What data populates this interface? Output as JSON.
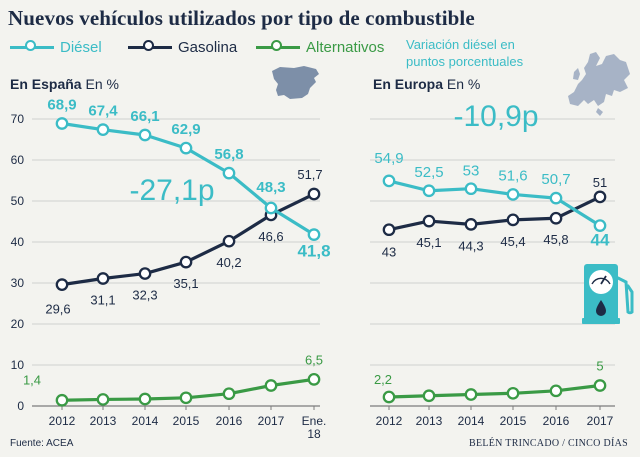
{
  "title": "Nuevos vehículos utilizados por tipo de combustible",
  "legend": [
    {
      "label": "Diésel",
      "color": "#3bbcc6"
    },
    {
      "label": "Gasolina",
      "color": "#1d2b45"
    },
    {
      "label": "Alternativos",
      "color": "#3a9a45"
    }
  ],
  "note": "Variación diésel en puntos porcentuales",
  "source": "Fuente: ACEA",
  "credit": "BELÉN TRINCADO / CINCO DÍAS",
  "chart_data": [
    {
      "type": "line",
      "title": "En España",
      "unit": "En %",
      "categories": [
        "2012",
        "2013",
        "2014",
        "2015",
        "2016",
        "2017",
        "Ene. 18"
      ],
      "ylim": [
        0,
        70
      ],
      "yticks": [
        0,
        10,
        20,
        30,
        40,
        50,
        60,
        70
      ],
      "gridlines": true,
      "annotation": "-27,1p",
      "series": [
        {
          "name": "Diésel",
          "color": "#3bbcc6",
          "values": [
            68.9,
            67.4,
            66.1,
            62.9,
            56.8,
            48.3,
            41.8
          ],
          "labels": [
            "68,9",
            "67,4",
            "66,1",
            "62,9",
            "56,8",
            "48,3",
            "41,8"
          ]
        },
        {
          "name": "Gasolina",
          "color": "#1d2b45",
          "values": [
            29.6,
            31.1,
            32.3,
            35.1,
            40.2,
            46.6,
            51.7
          ],
          "labels": [
            "29,6",
            "31,1",
            "32,3",
            "35,1",
            "40,2",
            "46,6",
            "51,7"
          ]
        },
        {
          "name": "Alternativos",
          "color": "#3a9a45",
          "values": [
            1.4,
            1.6,
            1.7,
            2.0,
            3.0,
            5.0,
            6.5
          ],
          "labels": [
            "1,4",
            "",
            "",
            "",
            "",
            "",
            "6,5"
          ]
        }
      ]
    },
    {
      "type": "line",
      "title": "En Europa",
      "unit": "En %",
      "categories": [
        "2012",
        "2013",
        "2014",
        "2015",
        "2016",
        "2017"
      ],
      "ylim": [
        0,
        70
      ],
      "gridlines": true,
      "annotation": "-10,9p",
      "series": [
        {
          "name": "Diésel",
          "color": "#3bbcc6",
          "values": [
            54.9,
            52.5,
            53,
            51.6,
            50.7,
            44
          ],
          "labels": [
            "54,9",
            "52,5",
            "53",
            "51,6",
            "50,7",
            "44"
          ]
        },
        {
          "name": "Gasolina",
          "color": "#1d2b45",
          "values": [
            43,
            45.1,
            44.3,
            45.4,
            45.8,
            51
          ],
          "labels": [
            "43",
            "45,1",
            "44,3",
            "45,4",
            "45,8",
            "51"
          ]
        },
        {
          "name": "Alternativos",
          "color": "#3a9a45",
          "values": [
            2.2,
            2.5,
            2.8,
            3.1,
            3.7,
            5
          ],
          "labels": [
            "2,2",
            "",
            "",
            "",
            "",
            "5"
          ]
        }
      ]
    }
  ]
}
